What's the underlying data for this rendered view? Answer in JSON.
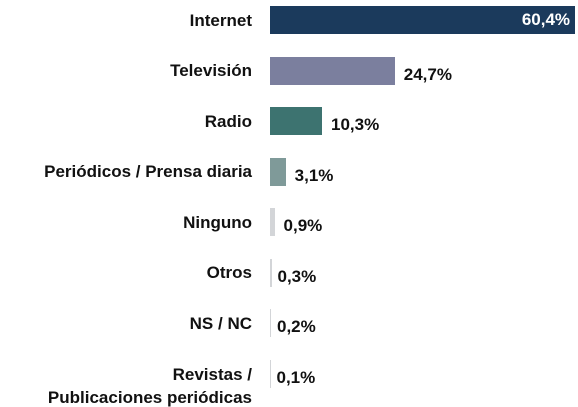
{
  "chart_data": {
    "type": "bar",
    "orientation": "horizontal",
    "categories": [
      "Internet",
      "Televisión",
      "Radio",
      "Periódicos / Prensa diaria",
      "Ninguno",
      "Otros",
      "NS / NC",
      "Revistas /\nPublicaciones periódicas"
    ],
    "values": [
      60.4,
      24.7,
      10.3,
      3.1,
      0.9,
      0.3,
      0.2,
      0.1
    ],
    "value_labels": [
      "60,4%",
      "24,7%",
      "10,3%",
      "3,1%",
      "0,9%",
      "0,3%",
      "0,2%",
      "0,1%"
    ],
    "colors": [
      "#1b3a5c",
      "#7b7f9e",
      "#3d7370",
      "#7f9a99",
      "#d3d5d8",
      "#d3d5d8",
      "#d3d5d8",
      "#d3d5d8"
    ]
  }
}
